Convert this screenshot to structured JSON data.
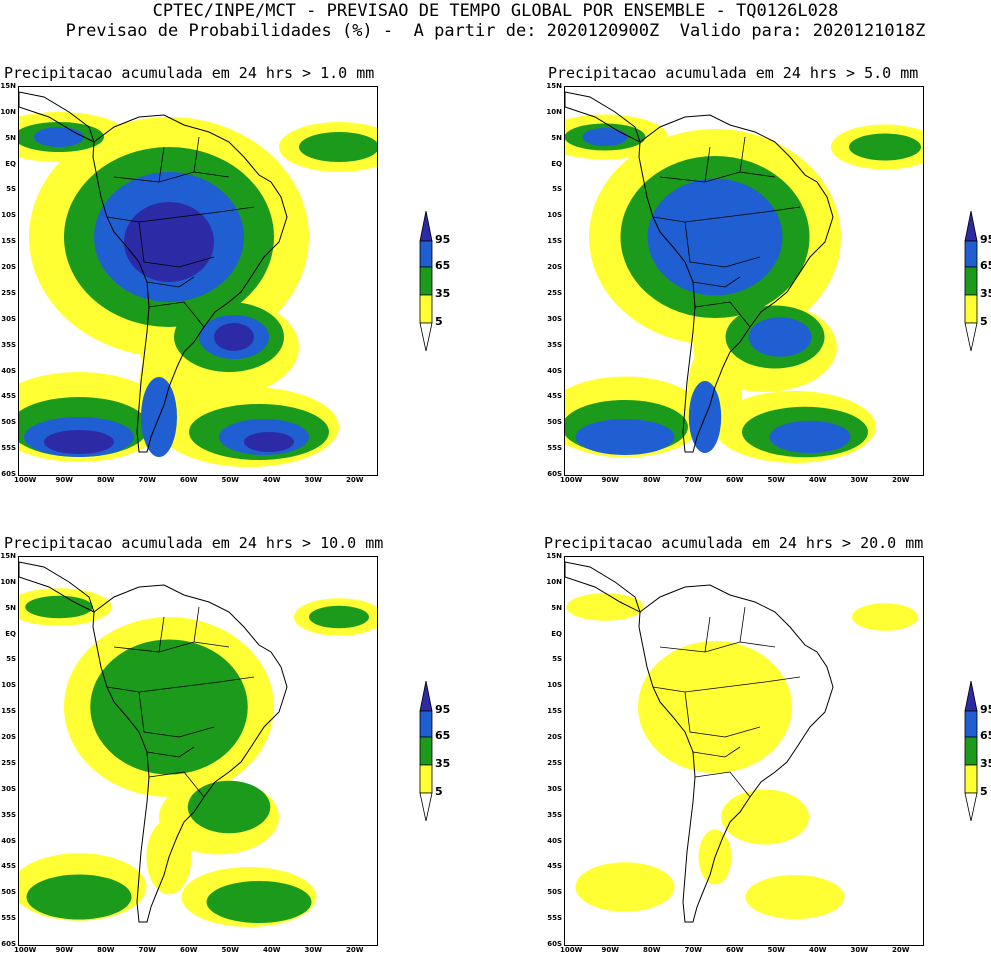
{
  "header": {
    "line1": "CPTEC/INPE/MCT - PREVISAO DE TEMPO GLOBAL POR ENSEMBLE - TQ0126L028",
    "line2": "Previsao de Probabilidades (%) -  A partir de: 2020120900Z  Valido para: 2020121018Z"
  },
  "colors": {
    "yellow": "#ffff33",
    "green": "#1c9a1c",
    "blue": "#1f5fd2",
    "navy": "#2d2aa6",
    "border": "#000000"
  },
  "axes": {
    "lat_labels": [
      "15N",
      "10N",
      "5N",
      "EQ",
      "5S",
      "10S",
      "15S",
      "20S",
      "25S",
      "30S",
      "35S",
      "40S",
      "45S",
      "50S",
      "55S",
      "60S"
    ],
    "lon_labels": [
      "100W",
      "90W",
      "80W",
      "70W",
      "60W",
      "50W",
      "40W",
      "30W",
      "20W"
    ]
  },
  "colorbar": {
    "labels": [
      "95",
      "65",
      "35",
      "5"
    ]
  },
  "panels": [
    {
      "title": "Precipitacao acumulada em 24 hrs > 1.0 mm",
      "intensity": 4
    },
    {
      "title": "Precipitacao acumulada em 24 hrs > 5.0 mm",
      "intensity": 3
    },
    {
      "title": "Precipitacao acumulada em 24 hrs > 10.0 mm",
      "intensity": 2
    },
    {
      "title": "Precipitacao acumulada em 24 hrs > 20.0 mm",
      "intensity": 1
    }
  ]
}
